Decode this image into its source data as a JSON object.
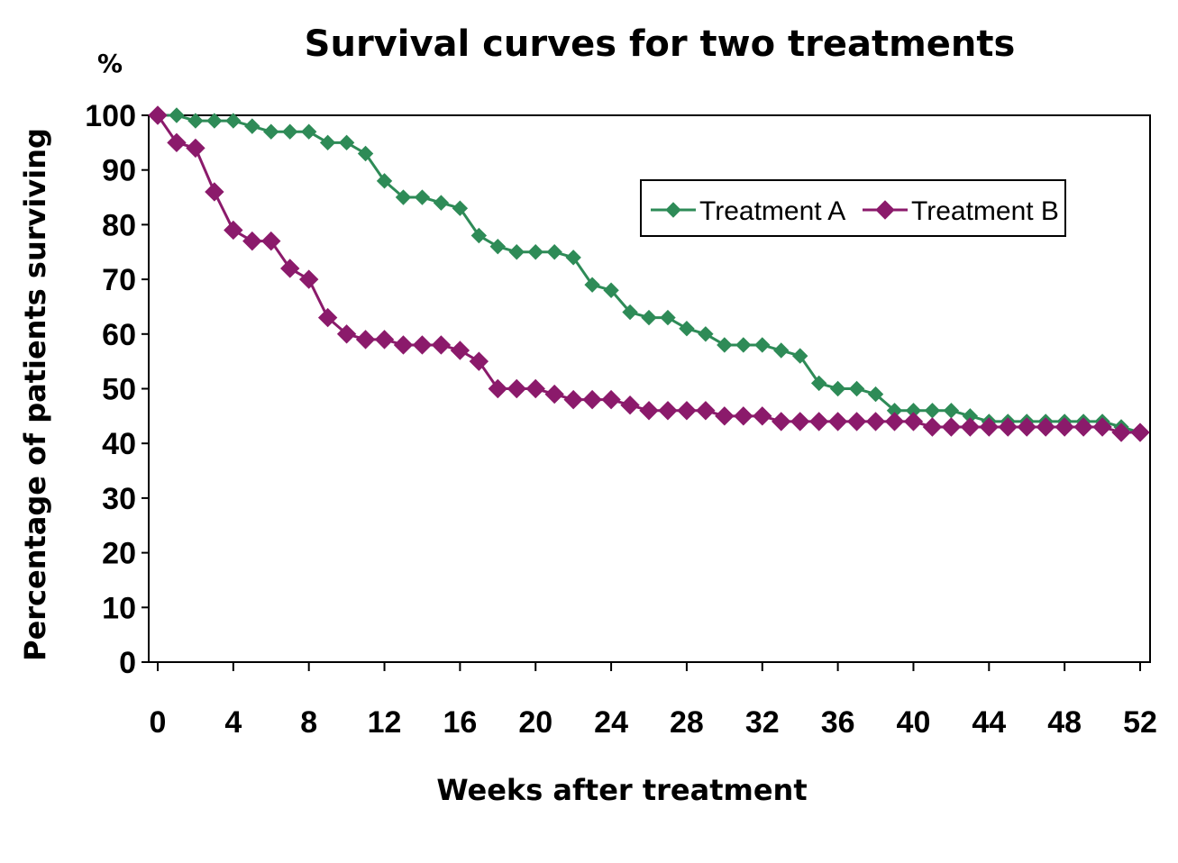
{
  "chart_data": {
    "type": "line",
    "title": "Survival curves for two treatments",
    "y_unit": "%",
    "xlabel": "Weeks after treatment",
    "ylabel": "Percentage of patients  surviving",
    "xlim": [
      0,
      52
    ],
    "ylim": [
      0,
      100
    ],
    "x_ticks": [
      0,
      4,
      8,
      12,
      16,
      20,
      24,
      28,
      32,
      36,
      40,
      44,
      48,
      52
    ],
    "y_ticks": [
      0,
      10,
      20,
      30,
      40,
      50,
      60,
      70,
      80,
      90,
      100
    ],
    "grid": false,
    "legend_position": "top-right",
    "x": [
      0,
      1,
      2,
      3,
      4,
      5,
      6,
      7,
      8,
      9,
      10,
      11,
      12,
      13,
      14,
      15,
      16,
      17,
      18,
      19,
      20,
      21,
      22,
      23,
      24,
      25,
      26,
      27,
      28,
      29,
      30,
      31,
      32,
      33,
      34,
      35,
      36,
      37,
      38,
      39,
      40,
      41,
      42,
      43,
      44,
      45,
      46,
      47,
      48,
      49,
      50,
      51,
      52
    ],
    "series": [
      {
        "name": "Treatment A",
        "color": "#2e8b57",
        "marker": "diamond",
        "values": [
          100,
          100,
          99,
          99,
          99,
          98,
          97,
          97,
          97,
          95,
          95,
          93,
          88,
          85,
          85,
          84,
          83,
          78,
          76,
          75,
          75,
          75,
          74,
          69,
          68,
          64,
          63,
          63,
          61,
          60,
          58,
          58,
          58,
          57,
          56,
          51,
          50,
          50,
          49,
          46,
          46,
          46,
          46,
          45,
          44,
          44,
          44,
          44,
          44,
          44,
          44,
          43,
          42
        ]
      },
      {
        "name": "Treatment B",
        "color": "#8b1a6b",
        "marker": "diamond",
        "values": [
          100,
          95,
          94,
          86,
          79,
          77,
          77,
          72,
          70,
          63,
          60,
          59,
          59,
          58,
          58,
          58,
          57,
          55,
          50,
          50,
          50,
          49,
          48,
          48,
          48,
          47,
          46,
          46,
          46,
          46,
          45,
          45,
          45,
          44,
          44,
          44,
          44,
          44,
          44,
          44,
          44,
          43,
          43,
          43,
          43,
          43,
          43,
          43,
          43,
          43,
          43,
          42,
          42
        ]
      }
    ]
  }
}
